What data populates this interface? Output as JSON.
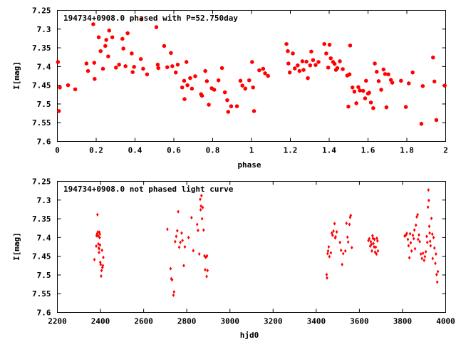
{
  "chart_data": [
    {
      "type": "scatter",
      "title": "194734+0908.0 phased with P=52.750day",
      "xlabel": "phase",
      "ylabel": "I[mag]",
      "xlim": [
        0,
        2
      ],
      "ylim": [
        7.6,
        7.25
      ],
      "y_inverted": true,
      "grid": false,
      "legend": "none",
      "marker": "hexagon",
      "color": "#ff0000",
      "xticks": [
        "0",
        "0.2",
        "0.4",
        "0.6",
        "0.8",
        "1",
        "1.2",
        "1.4",
        "1.6",
        "1.8",
        "2"
      ],
      "xtick_values": [
        0,
        0.2,
        0.4,
        0.6,
        0.8,
        1.0,
        1.2,
        1.4,
        1.6,
        1.8,
        2.0
      ],
      "yticks": [
        "7.25",
        "7.3",
        "7.35",
        "7.4",
        "7.45",
        "7.5",
        "7.55",
        "7.6"
      ],
      "ytick_values": [
        7.25,
        7.3,
        7.35,
        7.4,
        7.45,
        7.5,
        7.55,
        7.6
      ],
      "points": [
        [
          0.003,
          7.388
        ],
        [
          0.008,
          7.519
        ],
        [
          0.013,
          7.456
        ],
        [
          0.055,
          7.45
        ],
        [
          0.092,
          7.461
        ],
        [
          0.15,
          7.392
        ],
        [
          0.158,
          7.412
        ],
        [
          0.185,
          7.287
        ],
        [
          0.19,
          7.39
        ],
        [
          0.192,
          7.433
        ],
        [
          0.213,
          7.322
        ],
        [
          0.223,
          7.359
        ],
        [
          0.235,
          7.406
        ],
        [
          0.247,
          7.345
        ],
        [
          0.252,
          7.329
        ],
        [
          0.262,
          7.373
        ],
        [
          0.267,
          7.304
        ],
        [
          0.283,
          7.322
        ],
        [
          0.302,
          7.403
        ],
        [
          0.318,
          7.395
        ],
        [
          0.335,
          7.326
        ],
        [
          0.34,
          7.352
        ],
        [
          0.351,
          7.399
        ],
        [
          0.362,
          7.311
        ],
        [
          0.383,
          7.365
        ],
        [
          0.388,
          7.415
        ],
        [
          0.395,
          7.401
        ],
        [
          0.43,
          7.38
        ],
        [
          0.433,
          7.274
        ],
        [
          0.442,
          7.406
        ],
        [
          0.462,
          7.421
        ],
        [
          0.51,
          7.295
        ],
        [
          0.517,
          7.395
        ],
        [
          0.52,
          7.404
        ],
        [
          0.55,
          7.345
        ],
        [
          0.566,
          7.402
        ],
        [
          0.585,
          7.364
        ],
        [
          0.592,
          7.399
        ],
        [
          0.61,
          7.416
        ],
        [
          0.62,
          7.395
        ],
        [
          0.643,
          7.456
        ],
        [
          0.653,
          7.438
        ],
        [
          0.655,
          7.487
        ],
        [
          0.665,
          7.388
        ],
        [
          0.67,
          7.45
        ],
        [
          0.684,
          7.431
        ],
        [
          0.693,
          7.459
        ],
        [
          0.71,
          7.426
        ],
        [
          0.74,
          7.474
        ],
        [
          0.745,
          7.478
        ],
        [
          0.762,
          7.412
        ],
        [
          0.77,
          7.439
        ],
        [
          0.78,
          7.502
        ],
        [
          0.795,
          7.458
        ],
        [
          0.808,
          7.462
        ],
        [
          0.83,
          7.437
        ],
        [
          0.848,
          7.404
        ],
        [
          0.863,
          7.469
        ],
        [
          0.875,
          7.49
        ],
        [
          0.88,
          7.521
        ],
        [
          0.895,
          7.506
        ],
        [
          0.925,
          7.506
        ],
        [
          0.943,
          7.438
        ],
        [
          0.953,
          7.451
        ],
        [
          0.968,
          7.459
        ],
        [
          0.988,
          7.437
        ],
        [
          1.003,
          7.388
        ],
        [
          1.008,
          7.456
        ],
        [
          1.013,
          7.519
        ],
        [
          1.04,
          7.41
        ],
        [
          1.06,
          7.406
        ],
        [
          1.07,
          7.418
        ],
        [
          1.085,
          7.425
        ],
        [
          1.18,
          7.34
        ],
        [
          1.187,
          7.359
        ],
        [
          1.19,
          7.392
        ],
        [
          1.197,
          7.416
        ],
        [
          1.213,
          7.365
        ],
        [
          1.223,
          7.405
        ],
        [
          1.238,
          7.397
        ],
        [
          1.247,
          7.412
        ],
        [
          1.262,
          7.386
        ],
        [
          1.268,
          7.409
        ],
        [
          1.283,
          7.387
        ],
        [
          1.29,
          7.431
        ],
        [
          1.302,
          7.397
        ],
        [
          1.308,
          7.36
        ],
        [
          1.317,
          7.383
        ],
        [
          1.33,
          7.396
        ],
        [
          1.345,
          7.388
        ],
        [
          1.375,
          7.34
        ],
        [
          1.385,
          7.365
        ],
        [
          1.395,
          7.403
        ],
        [
          1.402,
          7.342
        ],
        [
          1.408,
          7.378
        ],
        [
          1.42,
          7.388
        ],
        [
          1.428,
          7.393
        ],
        [
          1.435,
          7.409
        ],
        [
          1.442,
          7.404
        ],
        [
          1.455,
          7.386
        ],
        [
          1.47,
          7.407
        ],
        [
          1.493,
          7.424
        ],
        [
          1.499,
          7.507
        ],
        [
          1.505,
          7.421
        ],
        [
          1.508,
          7.344
        ],
        [
          1.52,
          7.456
        ],
        [
          1.53,
          7.467
        ],
        [
          1.54,
          7.498
        ],
        [
          1.55,
          7.455
        ],
        [
          1.558,
          7.464
        ],
        [
          1.575,
          7.465
        ],
        [
          1.585,
          7.485
        ],
        [
          1.59,
          7.438
        ],
        [
          1.6,
          7.472
        ],
        [
          1.606,
          7.47
        ],
        [
          1.615,
          7.496
        ],
        [
          1.627,
          7.511
        ],
        [
          1.635,
          7.392
        ],
        [
          1.645,
          7.414
        ],
        [
          1.655,
          7.439
        ],
        [
          1.668,
          7.462
        ],
        [
          1.68,
          7.408
        ],
        [
          1.688,
          7.42
        ],
        [
          1.695,
          7.509
        ],
        [
          1.705,
          7.421
        ],
        [
          1.718,
          7.436
        ],
        [
          1.725,
          7.443
        ],
        [
          1.77,
          7.438
        ],
        [
          1.795,
          7.508
        ],
        [
          1.81,
          7.445
        ],
        [
          1.83,
          7.416
        ],
        [
          1.875,
          7.553
        ],
        [
          1.882,
          7.452
        ],
        [
          1.935,
          7.376
        ],
        [
          1.942,
          7.44
        ],
        [
          1.952,
          7.543
        ],
        [
          1.995,
          7.451
        ]
      ]
    },
    {
      "type": "scatter",
      "title": "194734+0908.0 not phased light curve",
      "xlabel": "hjd0",
      "ylabel": "I[mag]",
      "xlim": [
        2200,
        4000
      ],
      "ylim": [
        7.6,
        7.25
      ],
      "y_inverted": true,
      "grid": false,
      "legend": "none",
      "marker": "diamond",
      "color": "#ff0000",
      "xticks": [
        "2200",
        "2400",
        "2600",
        "2800",
        "3000",
        "3200",
        "3400",
        "3600",
        "3800",
        "4000"
      ],
      "xtick_values": [
        2200,
        2400,
        2600,
        2800,
        3000,
        3200,
        3400,
        3600,
        3800,
        4000
      ],
      "yticks": [
        "7.25",
        "7.3",
        "7.35",
        "7.4",
        "7.45",
        "7.5",
        "7.55",
        "7.6"
      ],
      "ytick_values": [
        7.25,
        7.3,
        7.35,
        7.4,
        7.45,
        7.5,
        7.55,
        7.6
      ],
      "points": [
        [
          2372,
          7.459
        ],
        [
          2380,
          7.423
        ],
        [
          2382,
          7.395
        ],
        [
          2384,
          7.39
        ],
        [
          2386,
          7.339
        ],
        [
          2388,
          7.385
        ],
        [
          2389,
          7.396
        ],
        [
          2390,
          7.417
        ],
        [
          2392,
          7.428
        ],
        [
          2393,
          7.44
        ],
        [
          2394,
          7.43
        ],
        [
          2395,
          7.386
        ],
        [
          2396,
          7.4
        ],
        [
          2397,
          7.391
        ],
        [
          2398,
          7.42
        ],
        [
          2399,
          7.466
        ],
        [
          2401,
          7.472
        ],
        [
          2403,
          7.503
        ],
        [
          2405,
          7.488
        ],
        [
          2407,
          7.434
        ],
        [
          2409,
          7.48
        ],
        [
          2411,
          7.475
        ],
        [
          2413,
          7.453
        ],
        [
          2710,
          7.378
        ],
        [
          2725,
          7.483
        ],
        [
          2728,
          7.51
        ],
        [
          2732,
          7.513
        ],
        [
          2738,
          7.554
        ],
        [
          2741,
          7.545
        ],
        [
          2746,
          7.411
        ],
        [
          2751,
          7.397
        ],
        [
          2756,
          7.382
        ],
        [
          2760,
          7.331
        ],
        [
          2765,
          7.426
        ],
        [
          2770,
          7.413
        ],
        [
          2776,
          7.388
        ],
        [
          2780,
          7.408
        ],
        [
          2786,
          7.475
        ],
        [
          2791,
          7.425
        ],
        [
          2808,
          7.4
        ],
        [
          2822,
          7.347
        ],
        [
          2830,
          7.435
        ],
        [
          2848,
          7.365
        ],
        [
          2852,
          7.381
        ],
        [
          2858,
          7.444
        ],
        [
          2862,
          7.298
        ],
        [
          2864,
          7.326
        ],
        [
          2866,
          7.316
        ],
        [
          2868,
          7.288
        ],
        [
          2871,
          7.35
        ],
        [
          2874,
          7.32
        ],
        [
          2878,
          7.38
        ],
        [
          2882,
          7.449
        ],
        [
          2885,
          7.486
        ],
        [
          2888,
          7.453
        ],
        [
          2892,
          7.504
        ],
        [
          2894,
          7.449
        ],
        [
          2896,
          7.488
        ],
        [
          3448,
          7.499
        ],
        [
          3450,
          7.508
        ],
        [
          3453,
          7.443
        ],
        [
          3455,
          7.436
        ],
        [
          3458,
          7.425
        ],
        [
          3461,
          7.451
        ],
        [
          3468,
          7.441
        ],
        [
          3472,
          7.388
        ],
        [
          3476,
          7.394
        ],
        [
          3480,
          7.383
        ],
        [
          3485,
          7.363
        ],
        [
          3488,
          7.401
        ],
        [
          3490,
          7.398
        ],
        [
          3495,
          7.385
        ],
        [
          3510,
          7.413
        ],
        [
          3515,
          7.434
        ],
        [
          3520,
          7.472
        ],
        [
          3525,
          7.443
        ],
        [
          3535,
          7.436
        ],
        [
          3540,
          7.362
        ],
        [
          3545,
          7.399
        ],
        [
          3548,
          7.412
        ],
        [
          3554,
          7.365
        ],
        [
          3557,
          7.346
        ],
        [
          3560,
          7.341
        ],
        [
          3565,
          7.427
        ],
        [
          3642,
          7.408
        ],
        [
          3646,
          7.403
        ],
        [
          3650,
          7.423
        ],
        [
          3653,
          7.411
        ],
        [
          3656,
          7.418
        ],
        [
          3658,
          7.436
        ],
        [
          3661,
          7.395
        ],
        [
          3663,
          7.402
        ],
        [
          3665,
          7.416
        ],
        [
          3668,
          7.425
        ],
        [
          3670,
          7.405
        ],
        [
          3673,
          7.439
        ],
        [
          3676,
          7.426
        ],
        [
          3679,
          7.444
        ],
        [
          3681,
          7.402
        ],
        [
          3684,
          7.409
        ],
        [
          3686,
          7.436
        ],
        [
          3810,
          7.396
        ],
        [
          3815,
          7.394
        ],
        [
          3820,
          7.389
        ],
        [
          3825,
          7.405
        ],
        [
          3828,
          7.422
        ],
        [
          3832,
          7.454
        ],
        [
          3835,
          7.39
        ],
        [
          3838,
          7.414
        ],
        [
          3842,
          7.436
        ],
        [
          3848,
          7.394
        ],
        [
          3852,
          7.403
        ],
        [
          3855,
          7.38
        ],
        [
          3858,
          7.43
        ],
        [
          3862,
          7.367
        ],
        [
          3866,
          7.345
        ],
        [
          3870,
          7.339
        ],
        [
          3872,
          7.405
        ],
        [
          3876,
          7.393
        ],
        [
          3880,
          7.411
        ],
        [
          3885,
          7.444
        ],
        [
          3890,
          7.456
        ],
        [
          3895,
          7.442
        ],
        [
          3900,
          7.461
        ],
        [
          3904,
          7.451
        ],
        [
          3908,
          7.438
        ],
        [
          3912,
          7.397
        ],
        [
          3915,
          7.413
        ],
        [
          3918,
          7.319
        ],
        [
          3920,
          7.273
        ],
        [
          3922,
          7.301
        ],
        [
          3924,
          7.37
        ],
        [
          3926,
          7.388
        ],
        [
          3928,
          7.41
        ],
        [
          3930,
          7.422
        ],
        [
          3934,
          7.349
        ],
        [
          3938,
          7.391
        ],
        [
          3940,
          7.456
        ],
        [
          3944,
          7.4
        ],
        [
          3948,
          7.428
        ],
        [
          3952,
          7.469
        ],
        [
          3955,
          7.444
        ],
        [
          3958,
          7.499
        ],
        [
          3961,
          7.519
        ],
        [
          3964,
          7.491
        ]
      ]
    }
  ]
}
